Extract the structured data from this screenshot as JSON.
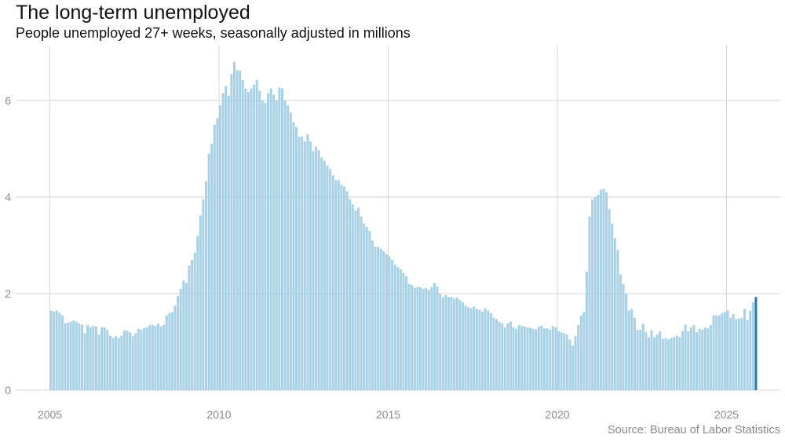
{
  "title": "The long-term unemployed",
  "subtitle": "People unemployed 27+ weeks, seasonally adjusted in millions",
  "source": "Source: Bureau of Labor Statistics",
  "colors": {
    "bar": "#a8d1e6",
    "highlight": "#1f78b4",
    "grid": "#d4d4d4",
    "tick": "#8a8a8a"
  },
  "chart_data": {
    "type": "bar",
    "title": "The long-term unemployed",
    "subtitle": "People unemployed 27+ weeks, seasonally adjusted in millions",
    "xlabel": "",
    "ylabel": "",
    "x_ticks": [
      "2005",
      "2010",
      "2015",
      "2020",
      "2025"
    ],
    "y_ticks": [
      "0",
      "2",
      "4",
      "6"
    ],
    "ylim": [
      0,
      7.1
    ],
    "xlim": [
      2004.65,
      2026.7
    ],
    "grid": true,
    "legend": "none",
    "frequency": "monthly",
    "start": "2005-01",
    "end": "2025-08",
    "highlight_last": true,
    "values": [
      1.65,
      1.63,
      1.65,
      1.6,
      1.55,
      1.38,
      1.4,
      1.42,
      1.44,
      1.42,
      1.38,
      1.36,
      1.18,
      1.35,
      1.3,
      1.33,
      1.32,
      1.15,
      1.3,
      1.3,
      1.25,
      1.13,
      1.08,
      1.12,
      1.08,
      1.13,
      1.24,
      1.23,
      1.2,
      1.12,
      1.18,
      1.27,
      1.25,
      1.28,
      1.3,
      1.35,
      1.35,
      1.33,
      1.38,
      1.32,
      1.35,
      1.55,
      1.6,
      1.62,
      1.75,
      1.95,
      2.1,
      2.27,
      2.22,
      2.58,
      2.7,
      2.85,
      3.2,
      3.62,
      3.95,
      4.33,
      4.9,
      5.1,
      5.5,
      5.63,
      5.9,
      6.15,
      6.3,
      6.1,
      6.55,
      6.8,
      6.63,
      6.62,
      6.42,
      6.25,
      6.18,
      6.25,
      6.33,
      6.43,
      6.2,
      6.0,
      5.95,
      6.15,
      6.25,
      6.12,
      6.0,
      6.27,
      6.25,
      6.0,
      5.9,
      5.75,
      5.55,
      5.45,
      5.25,
      5.25,
      5.15,
      5.3,
      5.15,
      4.95,
      5.05,
      4.97,
      4.82,
      4.75,
      4.65,
      4.58,
      4.45,
      4.35,
      4.35,
      4.25,
      4.22,
      4.12,
      3.95,
      3.85,
      3.72,
      3.78,
      3.6,
      3.45,
      3.38,
      3.3,
      3.1,
      2.97,
      2.97,
      2.93,
      2.88,
      2.82,
      2.77,
      2.7,
      2.6,
      2.55,
      2.5,
      2.43,
      2.36,
      2.2,
      2.18,
      2.12,
      2.14,
      2.13,
      2.1,
      2.12,
      2.08,
      2.14,
      2.22,
      2.15,
      2.0,
      1.93,
      1.97,
      1.93,
      1.93,
      1.9,
      1.92,
      1.87,
      1.82,
      1.75,
      1.72,
      1.7,
      1.73,
      1.68,
      1.66,
      1.63,
      1.7,
      1.65,
      1.6,
      1.5,
      1.47,
      1.42,
      1.38,
      1.3,
      1.38,
      1.42,
      1.3,
      1.27,
      1.35,
      1.33,
      1.32,
      1.3,
      1.29,
      1.27,
      1.26,
      1.32,
      1.34,
      1.28,
      1.28,
      1.25,
      1.33,
      1.3,
      1.22,
      1.2,
      1.18,
      1.15,
      1.05,
      0.92,
      1.12,
      1.35,
      1.55,
      1.62,
      2.45,
      3.6,
      3.95,
      4.0,
      4.05,
      4.15,
      4.17,
      4.1,
      3.75,
      3.45,
      3.15,
      2.9,
      2.4,
      2.2,
      2.0,
      1.65,
      1.68,
      1.5,
      1.25,
      1.25,
      1.38,
      1.2,
      1.1,
      1.24,
      1.1,
      1.15,
      1.22,
      1.06,
      1.08,
      1.05,
      1.08,
      1.1,
      1.13,
      1.1,
      1.22,
      1.36,
      1.22,
      1.3,
      1.35,
      1.2,
      1.27,
      1.25,
      1.3,
      1.28,
      1.35,
      1.55,
      1.55,
      1.55,
      1.6,
      1.62,
      1.65,
      1.5,
      1.58,
      1.47,
      1.48,
      1.5,
      1.68,
      1.45,
      1.65,
      1.82,
      1.93
    ]
  }
}
